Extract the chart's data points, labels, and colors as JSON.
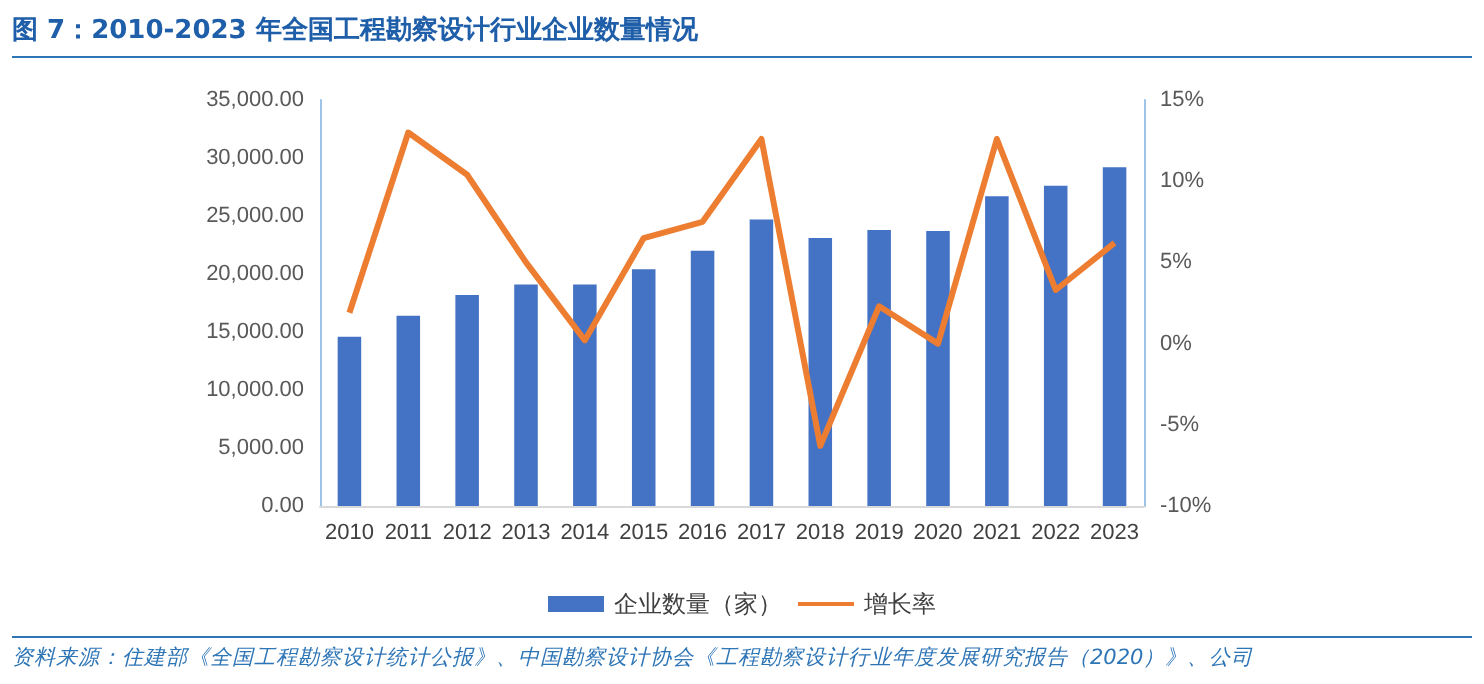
{
  "chart_data": {
    "type": "bar",
    "title": "图 7：2010-2023 年全国工程勘察设计行业企业数量情况",
    "annotations": [
      "资料来源：住建部《全国工程勘察设计统计公报》、中国勘察设计协会《工程勘察设计行业年度发展研究报告（2020）》、公司"
    ],
    "categories": [
      "2010",
      "2011",
      "2012",
      "2013",
      "2014",
      "2015",
      "2016",
      "2017",
      "2018",
      "2019",
      "2020",
      "2021",
      "2022",
      "2023"
    ],
    "series": [
      {
        "name": "企业数量（家）",
        "color": "#4472c4",
        "values": [
          14600,
          16400,
          18200,
          19100,
          19100,
          20400,
          22000,
          24700,
          23100,
          23800,
          23700,
          26700,
          27600,
          29200
        ]
      },
      {
        "name": "增长率",
        "type": "line",
        "axis": "y2",
        "color": "#ed7d31",
        "marker": "none",
        "values": [
          1.9,
          13.0,
          10.4,
          5.0,
          0.2,
          6.5,
          7.5,
          12.6,
          -6.3,
          2.3,
          0.0,
          12.6,
          3.3,
          6.2
        ]
      }
    ],
    "ylim": [
      0,
      35000
    ],
    "yticks": [
      {
        "value": 0,
        "label": "0.00"
      },
      {
        "value": 5000,
        "label": "5,000.00"
      },
      {
        "value": 10000,
        "label": "10,000.00"
      },
      {
        "value": 15000,
        "label": "15,000.00"
      },
      {
        "value": 20000,
        "label": "20,000.00"
      },
      {
        "value": 25000,
        "label": "25,000.00"
      },
      {
        "value": 30000,
        "label": "30,000.00"
      },
      {
        "value": 35000,
        "label": "35,000.00"
      }
    ],
    "y2lim": [
      -10,
      15
    ],
    "y2ticks": [
      {
        "value": -10,
        "label": "-10%"
      },
      {
        "value": -5,
        "label": "-5%"
      },
      {
        "value": 0,
        "label": "0%"
      },
      {
        "value": 5,
        "label": "5%"
      },
      {
        "value": 10,
        "label": "10%"
      },
      {
        "value": 15,
        "label": "15%"
      }
    ],
    "grid": false,
    "legend": "bottom"
  }
}
